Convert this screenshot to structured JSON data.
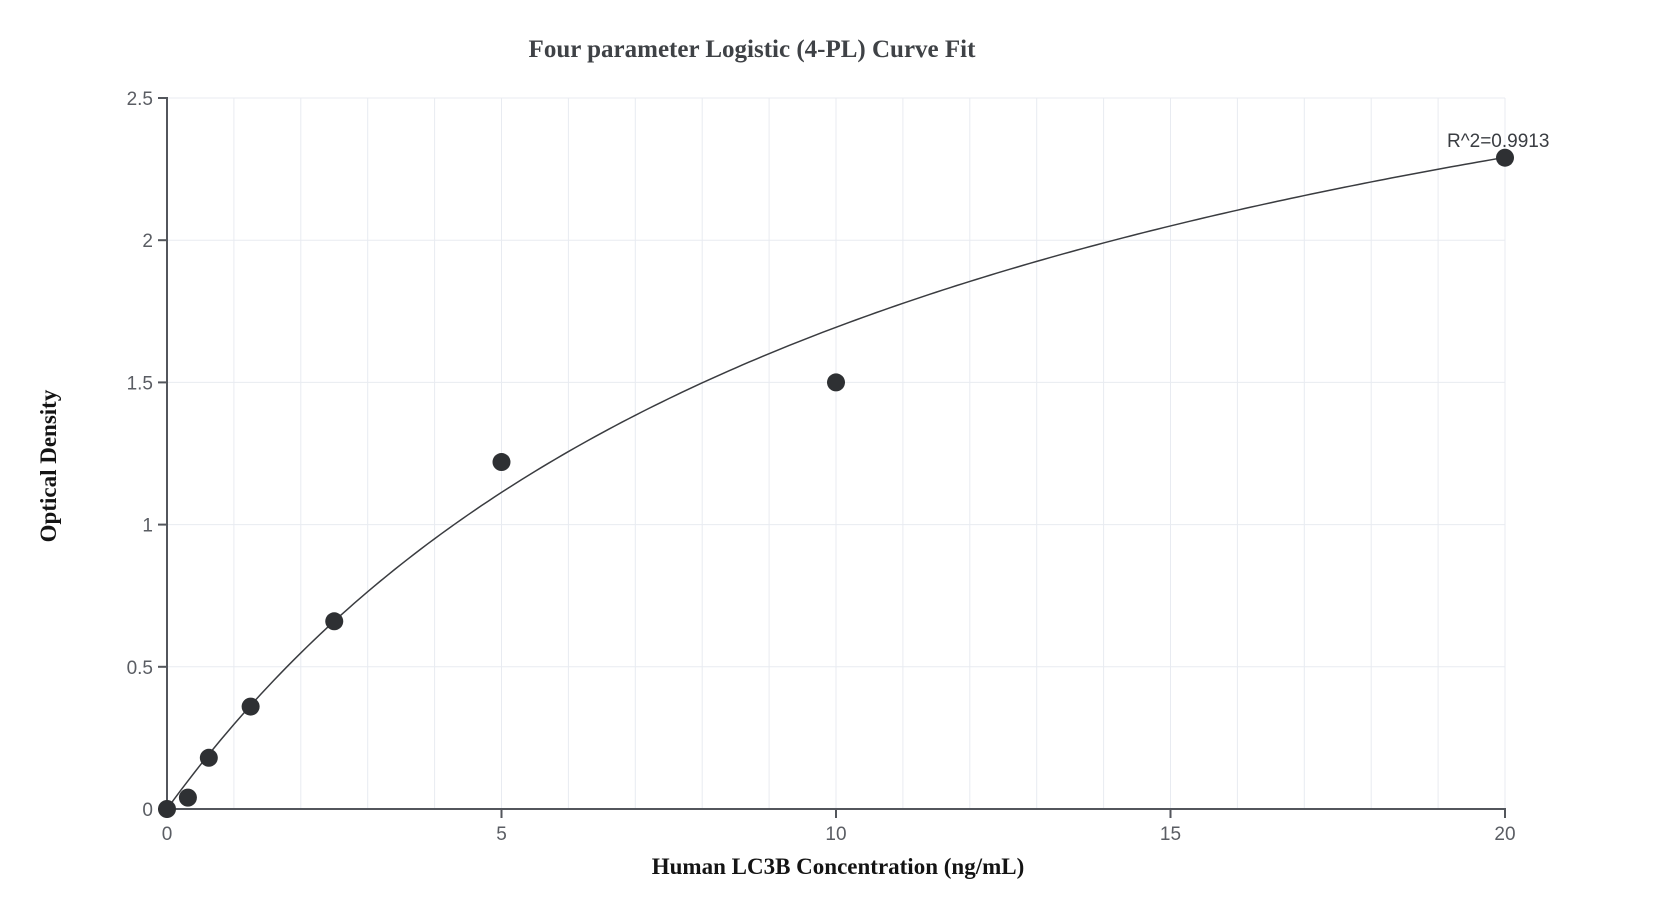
{
  "chart_data": {
    "type": "scatter",
    "title": "Four parameter Logistic (4-PL) Curve Fit",
    "xlabel": "Human LC3B Concentration (ng/mL)",
    "ylabel": "Optical Density",
    "annotation": "R^2=0.9913",
    "xlim": [
      0,
      20
    ],
    "ylim": [
      0,
      2.5
    ],
    "x_ticks": [
      0,
      5,
      10,
      15,
      20
    ],
    "y_ticks": [
      0,
      0.5,
      1,
      1.5,
      2,
      2.5
    ],
    "x_minor_grid_step": 1,
    "y_grid_step": 0.5,
    "grid": true,
    "legend_position": "none",
    "points": [
      {
        "x": 0,
        "y": 0.0
      },
      {
        "x": 0.3125,
        "y": 0.04
      },
      {
        "x": 0.625,
        "y": 0.18
      },
      {
        "x": 1.25,
        "y": 0.36
      },
      {
        "x": 2.5,
        "y": 0.66
      },
      {
        "x": 5,
        "y": 1.22
      },
      {
        "x": 10,
        "y": 1.5
      },
      {
        "x": 20,
        "y": 2.29
      }
    ],
    "fit_curve": {
      "model": "4PL",
      "a": 0,
      "b": 1,
      "c": 10.9,
      "d": 3.54,
      "r_squared": "0.9913"
    }
  },
  "colors": {
    "background": "#ffffff",
    "gridline": "#e8ebf1",
    "axis": "#53565c",
    "tick_label": "#5a5d63",
    "point": "#2e3033",
    "curve": "#3a3c40",
    "title": "#3f4246",
    "axis_label": "#141414",
    "annotation": "#3a3d42"
  }
}
